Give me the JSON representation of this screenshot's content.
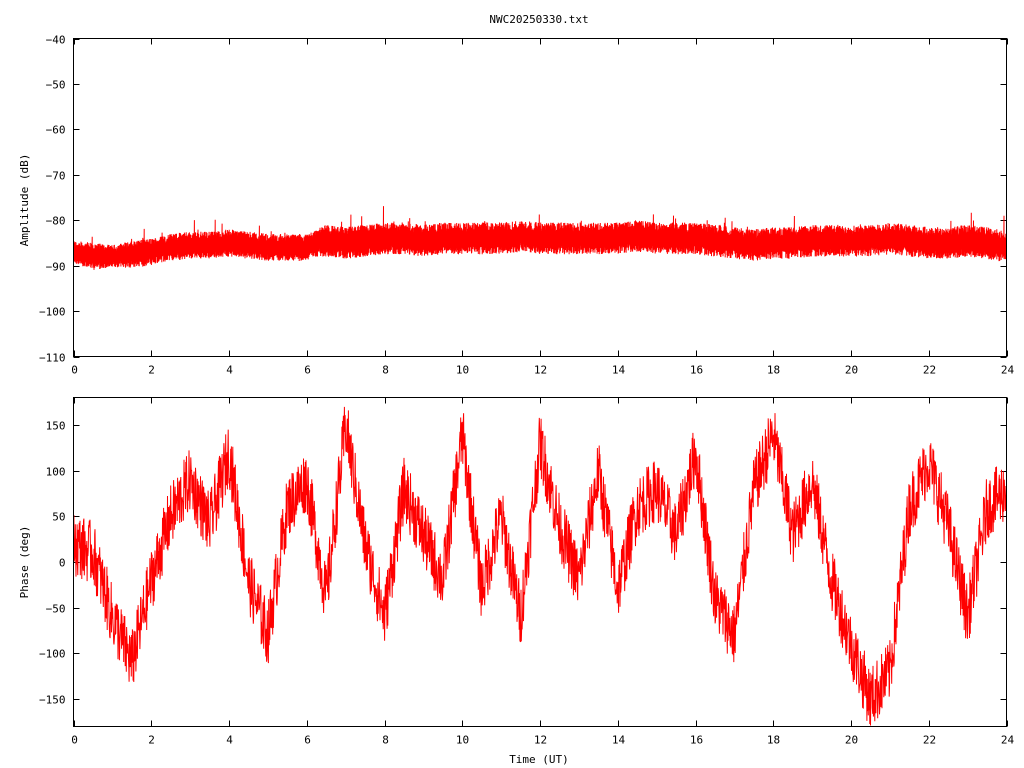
{
  "chart_data": [
    {
      "type": "line",
      "title": "NWC20250330.txt",
      "xlabel": "",
      "ylabel": "Amplitude (dB)",
      "xlim": [
        0,
        24
      ],
      "ylim": [
        -110,
        -40
      ],
      "xticks": [
        "0",
        "2",
        "4",
        "6",
        "8",
        "10",
        "12",
        "14",
        "16",
        "18",
        "20",
        "22",
        "24"
      ],
      "yticks": [
        "-40",
        "-50",
        "-60",
        "-70",
        "-80",
        "-90",
        "-100",
        "-110"
      ],
      "grid": false,
      "legend": "none",
      "series": [
        {
          "color": "#ff0000",
          "x": [
            0,
            0.5,
            1,
            1.5,
            2,
            2.5,
            3,
            3.5,
            4,
            4.5,
            5,
            5.5,
            6,
            6.25,
            6.5,
            7,
            7.5,
            8,
            8.5,
            9,
            9.5,
            10,
            10.5,
            11,
            11.5,
            12,
            12.5,
            13,
            13.5,
            14,
            14.5,
            15,
            15.5,
            16,
            16.5,
            17,
            17.5,
            18,
            18.5,
            19,
            19.5,
            20,
            20.5,
            21,
            21.5,
            22,
            22.5,
            23,
            23.5,
            24
          ],
          "y": [
            -87,
            -88,
            -88,
            -87.5,
            -87,
            -86,
            -85.5,
            -85.5,
            -85,
            -85.5,
            -86,
            -86,
            -86,
            -85,
            -84.5,
            -85,
            -84.5,
            -84,
            -84,
            -84.5,
            -84,
            -84,
            -84,
            -84,
            -83.5,
            -84,
            -84,
            -84,
            -84,
            -84,
            -83.5,
            -84,
            -84,
            -84,
            -84.5,
            -85,
            -85.5,
            -85,
            -85,
            -84.5,
            -84.5,
            -84.5,
            -84.5,
            -84,
            -84.5,
            -85,
            -85,
            -84.5,
            -85,
            -86
          ],
          "spread": [
            2.5,
            3,
            2.5,
            3,
            3,
            3,
            3,
            3,
            3,
            3,
            3,
            3,
            3,
            3,
            3.5,
            3.5,
            3.5,
            3.5,
            3.5,
            3.5,
            3.5,
            3.5,
            3.5,
            3.5,
            3.5,
            3.5,
            3.5,
            3.5,
            3.5,
            3.5,
            3.5,
            3.5,
            3.5,
            3.5,
            3.5,
            3.5,
            3.5,
            3.5,
            3.5,
            3.5,
            3.5,
            3.5,
            3.5,
            3.5,
            3.5,
            3.5,
            3.5,
            3.5,
            3.5,
            3.5
          ]
        }
      ]
    },
    {
      "type": "line",
      "title": "",
      "xlabel": "Time (UT)",
      "ylabel": "Phase (deg)",
      "xlim": [
        0,
        24
      ],
      "ylim": [
        -180,
        180
      ],
      "xticks": [
        "0",
        "2",
        "4",
        "6",
        "8",
        "10",
        "12",
        "14",
        "16",
        "18",
        "20",
        "22",
        "24"
      ],
      "yticks": [
        "150",
        "100",
        "50",
        "0",
        "-50",
        "-100",
        "-150"
      ],
      "grid": false,
      "legend": "none",
      "series": [
        {
          "color": "#ff0000",
          "x": [
            0,
            0.5,
            1,
            1.5,
            2,
            2.5,
            3,
            3.5,
            4,
            4.5,
            5,
            5.5,
            6,
            6.5,
            7,
            7.5,
            8,
            8.5,
            9,
            9.5,
            10,
            10.5,
            11,
            11.5,
            12,
            12.5,
            13,
            13.5,
            14,
            14.5,
            15,
            15.5,
            16,
            16.5,
            17,
            17.5,
            18,
            18.5,
            19,
            19.5,
            20,
            20.5,
            21,
            21.5,
            22,
            22.5,
            23,
            23.5,
            24
          ],
          "y": [
            20,
            10,
            -60,
            -110,
            -20,
            50,
            90,
            40,
            120,
            -20,
            -80,
            60,
            90,
            -40,
            150,
            20,
            -60,
            80,
            30,
            -20,
            140,
            -30,
            50,
            -60,
            130,
            40,
            -20,
            100,
            -30,
            60,
            80,
            30,
            120,
            -40,
            -80,
            80,
            140,
            30,
            90,
            -20,
            -90,
            -150,
            -120,
            60,
            110,
            40,
            -60,
            60,
            80
          ]
        }
      ]
    }
  ]
}
